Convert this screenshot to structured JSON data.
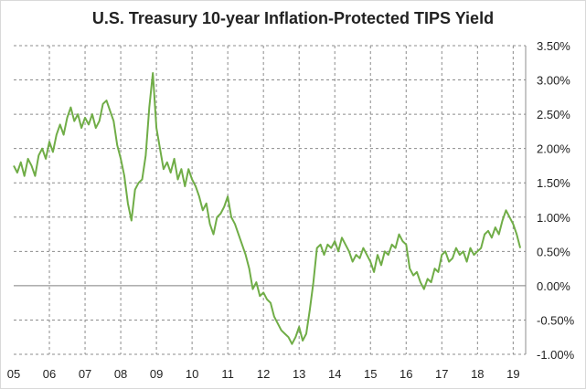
{
  "chart_data": {
    "type": "line",
    "title": "U.S. Treasury 10-year Inflation-Protected TIPS Yield",
    "xlabel": "",
    "ylabel": "",
    "x_tick_labels": [
      "05",
      "06",
      "07",
      "08",
      "09",
      "10",
      "11",
      "12",
      "13",
      "14",
      "15",
      "16",
      "17",
      "18",
      "19"
    ],
    "y_tick_labels": [
      "3.50%",
      "3.00%",
      "2.50%",
      "2.00%",
      "1.50%",
      "1.00%",
      "0.50%",
      "0.00%",
      "-0.50%",
      "-1.00%"
    ],
    "y_tick_values": [
      3.5,
      3.0,
      2.5,
      2.0,
      1.5,
      1.0,
      0.5,
      0.0,
      -0.5,
      -1.0
    ],
    "xlim": [
      2005.0,
      2019.35
    ],
    "ylim": [
      -1.0,
      3.5
    ],
    "grid": "dashed vertical and horizontal",
    "line_color": "#70ad47",
    "series": [
      {
        "x": [
          2005.0,
          2005.1,
          2005.2,
          2005.3,
          2005.4,
          2005.5,
          2005.6,
          2005.7,
          2005.8,
          2005.9,
          2006.0,
          2006.1,
          2006.2,
          2006.3,
          2006.4,
          2006.5,
          2006.6,
          2006.7,
          2006.8,
          2006.9,
          2007.0,
          2007.1,
          2007.2,
          2007.3,
          2007.4,
          2007.5,
          2007.6,
          2007.7,
          2007.8,
          2007.9,
          2008.0,
          2008.1,
          2008.2,
          2008.3,
          2008.4,
          2008.5,
          2008.6,
          2008.7,
          2008.8,
          2008.9,
          2009.0,
          2009.1,
          2009.2,
          2009.3,
          2009.4,
          2009.5,
          2009.6,
          2009.7,
          2009.8,
          2009.9,
          2010.0,
          2010.1,
          2010.2,
          2010.3,
          2010.4,
          2010.5,
          2010.6,
          2010.7,
          2010.8,
          2010.9,
          2011.0,
          2011.1,
          2011.2,
          2011.3,
          2011.4,
          2011.5,
          2011.6,
          2011.7,
          2011.8,
          2011.9,
          2012.0,
          2012.1,
          2012.2,
          2012.3,
          2012.4,
          2012.5,
          2012.6,
          2012.7,
          2012.8,
          2012.9,
          2013.0,
          2013.1,
          2013.2,
          2013.3,
          2013.4,
          2013.5,
          2013.6,
          2013.7,
          2013.8,
          2013.9,
          2014.0,
          2014.1,
          2014.2,
          2014.3,
          2014.4,
          2014.5,
          2014.6,
          2014.7,
          2014.8,
          2014.9,
          2015.0,
          2015.1,
          2015.2,
          2015.3,
          2015.4,
          2015.5,
          2015.6,
          2015.7,
          2015.8,
          2015.9,
          2016.0,
          2016.1,
          2016.2,
          2016.3,
          2016.4,
          2016.5,
          2016.6,
          2016.7,
          2016.8,
          2016.9,
          2017.0,
          2017.1,
          2017.2,
          2017.3,
          2017.4,
          2017.5,
          2017.6,
          2017.7,
          2017.8,
          2017.9,
          2018.0,
          2018.1,
          2018.2,
          2018.3,
          2018.4,
          2018.5,
          2018.6,
          2018.7,
          2018.8,
          2018.9,
          2019.0,
          2019.1,
          2019.2
        ],
        "values": [
          1.75,
          1.65,
          1.8,
          1.6,
          1.85,
          1.75,
          1.6,
          1.9,
          2.0,
          1.85,
          2.1,
          1.95,
          2.2,
          2.35,
          2.2,
          2.45,
          2.6,
          2.4,
          2.5,
          2.3,
          2.45,
          2.35,
          2.5,
          2.3,
          2.4,
          2.65,
          2.7,
          2.55,
          2.4,
          2.05,
          1.85,
          1.6,
          1.2,
          0.95,
          1.4,
          1.5,
          1.55,
          1.9,
          2.6,
          3.1,
          2.3,
          2.0,
          1.7,
          1.8,
          1.65,
          1.85,
          1.55,
          1.7,
          1.45,
          1.7,
          1.55,
          1.45,
          1.3,
          1.1,
          1.2,
          0.9,
          0.75,
          1.0,
          1.05,
          1.15,
          1.3,
          1.0,
          0.9,
          0.75,
          0.6,
          0.45,
          0.25,
          -0.05,
          0.05,
          -0.15,
          -0.1,
          -0.2,
          -0.25,
          -0.45,
          -0.55,
          -0.65,
          -0.7,
          -0.75,
          -0.85,
          -0.75,
          -0.6,
          -0.8,
          -0.7,
          -0.35,
          0.05,
          0.55,
          0.6,
          0.45,
          0.6,
          0.55,
          0.65,
          0.5,
          0.7,
          0.6,
          0.5,
          0.35,
          0.45,
          0.4,
          0.55,
          0.45,
          0.35,
          0.2,
          0.45,
          0.3,
          0.5,
          0.45,
          0.6,
          0.55,
          0.75,
          0.65,
          0.6,
          0.25,
          0.15,
          0.2,
          0.05,
          -0.05,
          0.1,
          0.05,
          0.25,
          0.2,
          0.45,
          0.5,
          0.35,
          0.4,
          0.55,
          0.45,
          0.5,
          0.35,
          0.55,
          0.45,
          0.5,
          0.55,
          0.75,
          0.8,
          0.7,
          0.85,
          0.75,
          0.95,
          1.1,
          1.0,
          0.9,
          0.75,
          0.55
        ]
      }
    ]
  }
}
